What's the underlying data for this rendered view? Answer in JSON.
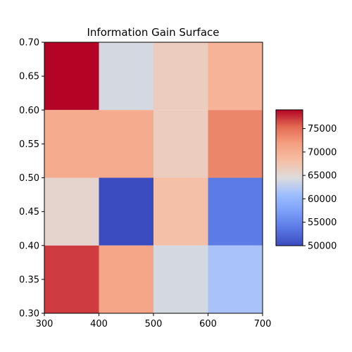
{
  "chart_data": {
    "type": "heatmap",
    "title": "Information Gain Surface",
    "xlabel": "",
    "ylabel": "",
    "x_edges": [
      300,
      400,
      500,
      600,
      700
    ],
    "y_edges": [
      0.3,
      0.4,
      0.5,
      0.6,
      0.7
    ],
    "x_ticks": [
      "300",
      "400",
      "500",
      "600",
      "700"
    ],
    "y_ticks": [
      "0.30",
      "0.35",
      "0.40",
      "0.45",
      "0.50",
      "0.55",
      "0.60",
      "0.65",
      "0.70"
    ],
    "values_top_to_bottom": [
      [
        79000,
        64000,
        66500,
        69500
      ],
      [
        70500,
        70500,
        66500,
        73500
      ],
      [
        65500,
        50000,
        68000,
        54000
      ],
      [
        77000,
        71000,
        64000,
        61500
      ]
    ],
    "colormap": "coolwarm",
    "colorbar": {
      "min": 50000,
      "max": 79000,
      "ticks": [
        "50000",
        "55000",
        "60000",
        "65000",
        "70000",
        "75000"
      ]
    },
    "grid": false
  }
}
